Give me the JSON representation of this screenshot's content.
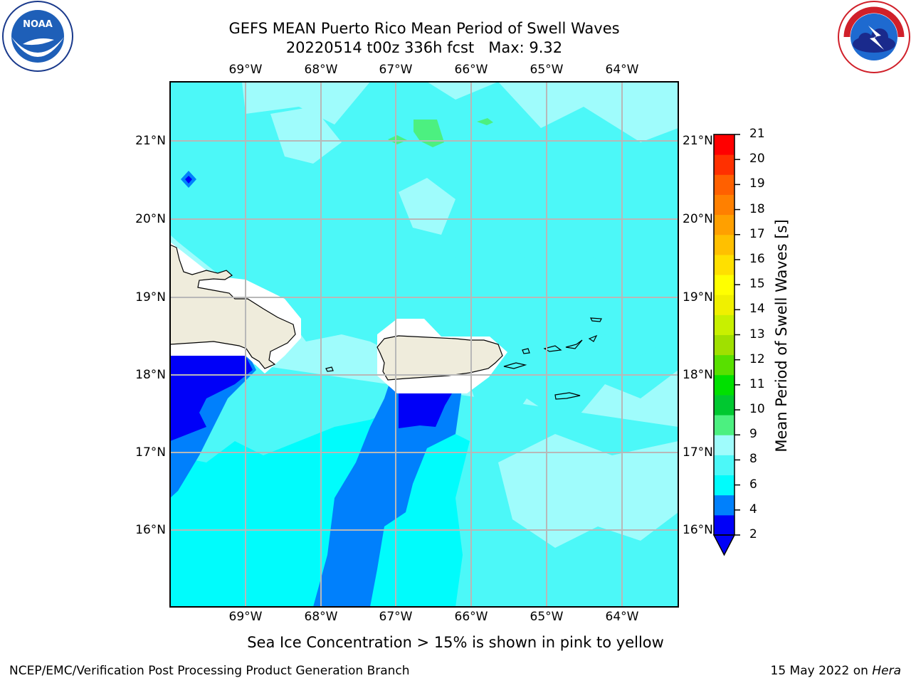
{
  "title_line1": "GEFS MEAN Puerto Rico Mean Period of Swell Waves",
  "title_line2": "20220514 t00z 336h fcst   Max: 9.32",
  "logos": {
    "left": "noaa-logo",
    "right": "national-weather-service-logo"
  },
  "map": {
    "lon_labels": [
      "69°W",
      "68°W",
      "67°W",
      "66°W",
      "65°W",
      "64°W"
    ],
    "lat_labels": [
      "21°N",
      "20°N",
      "19°N",
      "18°N",
      "17°N",
      "16°N"
    ],
    "colors": {
      "land": "#efecdc",
      "ocean_light": "#9ffcfc",
      "ocean_mid": "#4cf8f8",
      "ocean_cyan": "#00fcfc",
      "ocean_blue": "#0080fc",
      "ocean_deep": "#0000f8",
      "grid": "#b8b8b8"
    }
  },
  "colorbar": {
    "label": "Mean Period of Swell Waves [s]",
    "ticks": [
      "21",
      "20",
      "19",
      "18",
      "17",
      "16",
      "15",
      "14",
      "13",
      "12",
      "11",
      "10",
      "9",
      "8",
      "6",
      "4",
      "2"
    ],
    "colors": [
      "#0000f8",
      "#0080fc",
      "#00fcfc",
      "#4cf8f8",
      "#9ffcfc",
      "#4cf080",
      "#00c830",
      "#00e000",
      "#58e000",
      "#a0e000",
      "#c8f000",
      "#f0f000",
      "#ffff00",
      "#ffe000",
      "#ffc000",
      "#ffa000",
      "#ff8000",
      "#ff6000",
      "#ff3000",
      "#ff0000"
    ]
  },
  "caption": "Sea Ice Concentration > 15% is shown in pink to yellow",
  "footer_left": "NCEP/EMC/Verification Post Processing Product Generation Branch",
  "footer_date": "15 May 2022 on ",
  "footer_host": "Hera"
}
